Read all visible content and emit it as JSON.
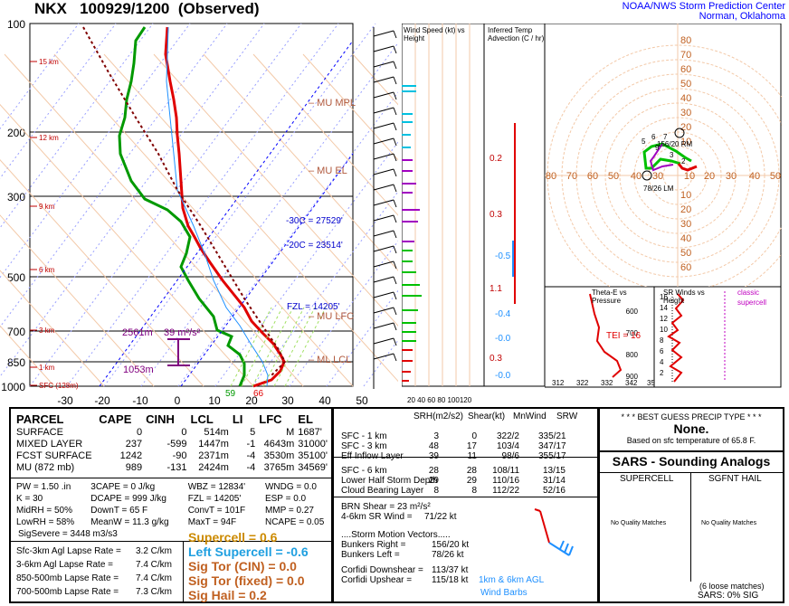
{
  "header": {
    "station": "NKX",
    "datetime": "100929/1200",
    "status": "(Observed)",
    "org_line1": "NOAA/NWS Storm Prediction Center",
    "org_line2": "Norman, Oklahoma"
  },
  "skewt": {
    "pressure_levels": [
      "100",
      "200",
      "300",
      "500",
      "700",
      "850",
      "1000"
    ],
    "temp_ticks": [
      "-30",
      "-20",
      "-10",
      "0",
      "10",
      "20",
      "30",
      "40",
      "50"
    ],
    "height_labels": [
      "15 km",
      "12 km",
      "9 km",
      "6 km",
      "3 km",
      "1 km",
      "SFC (128m)"
    ],
    "annotations": {
      "mu_mpl": "– MU MPL",
      "mu_el": "– MU EL",
      "mu_lfc": "– MU LFC",
      "ml_lcl": "– ML LCL",
      "m30c": "-30C = 27529'",
      "m20c": "-20C = 23514'",
      "fzl": "FZL = 14205'",
      "srh_height": "2561m",
      "srh_value": "39 m²/s²",
      "eff_bottom": "1053m",
      "sfc_td": "59",
      "sfc_t": "66"
    }
  },
  "wind_panel": {
    "title": "Wind Speed (kt) vs Height",
    "ticks": "20 40 60 80 100120"
  },
  "advection_panel": {
    "title": "Inferred Temp Advection (C / hr)",
    "values": [
      "0.2",
      "0.3",
      "-0.5",
      "1.1",
      "-0.4",
      "-0.0",
      "0.3",
      "-0.0"
    ]
  },
  "hodograph": {
    "x_ticks": [
      "80",
      "70",
      "60",
      "50",
      "40",
      "30",
      "20",
      "10",
      "10",
      "20",
      "30",
      "40",
      "50"
    ],
    "y_ticks": [
      "10",
      "20",
      "30",
      "40",
      "50",
      "60"
    ],
    "top_ticks": [
      "80",
      "70",
      "60",
      "50",
      "40",
      "30",
      "20",
      "10"
    ],
    "rm_label": "156/20 RM",
    "lm_label": "78/26 LM",
    "pt_labels": [
      "5",
      "6",
      "7",
      "3",
      "9",
      "2"
    ]
  },
  "theta_panel": {
    "title": "Theta-E vs Pressure",
    "tei": "TEI = 16",
    "x_ticks": [
      "312",
      "322",
      "332",
      "342",
      "352"
    ],
    "y_ticks": [
      "600",
      "700",
      "800",
      "900"
    ]
  },
  "srwinds_panel": {
    "title": "SR Winds vs Height",
    "legend1": "classic",
    "legend2": "supercell",
    "y_ticks": [
      "16",
      "14",
      "12",
      "10",
      "8",
      "6",
      "4",
      "2"
    ]
  },
  "parcel_table": {
    "headers": [
      "PARCEL",
      "CAPE",
      "CINH",
      "LCL",
      "LI",
      "LFC",
      "EL"
    ],
    "rows": [
      [
        "SURFACE",
        "0",
        "0",
        "514m",
        "5",
        "M",
        "1687'"
      ],
      [
        "MIXED LAYER",
        "237",
        "-599",
        "1447m",
        "-1",
        "4643m",
        "31000'"
      ],
      [
        "FCST SURFACE",
        "1242",
        "-90",
        "2371m",
        "-4",
        "3530m",
        "35100'"
      ],
      [
        "MU   (872 mb)",
        "989",
        "-131",
        "2424m",
        "-4",
        "3765m",
        "34569'"
      ]
    ]
  },
  "thermo": [
    [
      "PW = 1.50 .in",
      "3CAPE = 0 J/kg",
      "WBZ = 12834'",
      "WNDG = 0.0"
    ],
    [
      "K = 30",
      "DCAPE = 999 J/kg",
      "FZL = 14205'",
      "ESP = 0.0"
    ],
    [
      "MidRH = 50%",
      "DownT = 65 F",
      "ConvT = 101F",
      "MMP = 0.27"
    ],
    [
      "LowRH = 58%",
      "MeanW = 11.3 g/kg",
      "MaxT = 94F",
      "NCAPE = 0.05"
    ]
  ],
  "sigsevere": "SigSevere = 3448 m3/s3",
  "lapse": [
    [
      "Sfc-3km Agl Lapse Rate =",
      "3.2 C/km"
    ],
    [
      "3-6km Agl Lapse Rate =",
      "7.4 C/km"
    ],
    [
      "850-500mb Lapse Rate =",
      "7.4 C/km"
    ],
    [
      "700-500mb Lapse Rate =",
      "7.3 C/km"
    ]
  ],
  "indices": [
    {
      "text": "Supercell = 0.6",
      "color": "#cc8a00"
    },
    {
      "text": "Left Supercell = -0.6",
      "color": "#1e9fe0"
    },
    {
      "text": "Sig Tor (CIN) = 0.0",
      "color": "#c06020"
    },
    {
      "text": "Sig Tor (fixed) = 0.0",
      "color": "#c06020"
    },
    {
      "text": "Sig Hail = 0.2",
      "color": "#c06020"
    }
  ],
  "kin_table": {
    "headers": [
      "SRH(m2/s2)",
      "Shear(kt)",
      "MnWind",
      "SRW"
    ],
    "rows": [
      [
        "SFC - 1 km",
        "3",
        "0",
        "322/2",
        "335/21"
      ],
      [
        "SFC - 3 km",
        "48",
        "17",
        "103/4",
        "347/17"
      ],
      [
        "Eff Inflow Layer",
        "39",
        "11",
        "98/6",
        "355/17"
      ],
      [
        "SFC - 6 km",
        "28",
        "28",
        "108/11",
        "13/15"
      ],
      [
        "Lower Half Storm Depth",
        "29",
        "29",
        "110/16",
        "31/14"
      ],
      [
        "Cloud Bearing Layer",
        "8",
        "8",
        "112/22",
        "52/16"
      ]
    ],
    "brn": [
      "BRN Shear =  23 m²/s²",
      "4-6km SR Wind =",
      "71/22 kt"
    ],
    "motion_title": "....Storm Motion Vectors.....",
    "motion": [
      [
        "Bunkers Right =",
        "156/20 kt"
      ],
      [
        "Bunkers Left =",
        "78/26 kt"
      ],
      [
        "Corfidi Downshear =",
        "113/37 kt"
      ],
      [
        "Corfidi Upshear =",
        "115/18 kt"
      ]
    ],
    "barb_label1": "1km & 6km AGL",
    "barb_label2": "Wind Barbs"
  },
  "precip": {
    "title": "* * * BEST GUESS PRECIP TYPE * * *",
    "value": "None.",
    "note": "Based on sfc temperature of 65.8 F."
  },
  "sars": {
    "title": "SARS - Sounding Analogs",
    "col1": "SUPERCELL",
    "col2": "SGFNT HAIL",
    "nq1": "No Quality Matches",
    "nq2": "No Quality Matches",
    "loose": "(6 loose matches)",
    "sig": "SARS:  0% SIG"
  },
  "colors": {
    "temp": "#e00000",
    "dewp": "#009900",
    "wetbulb": "#1e90ff",
    "parcel": "#800000",
    "advec": "#e00000"
  }
}
